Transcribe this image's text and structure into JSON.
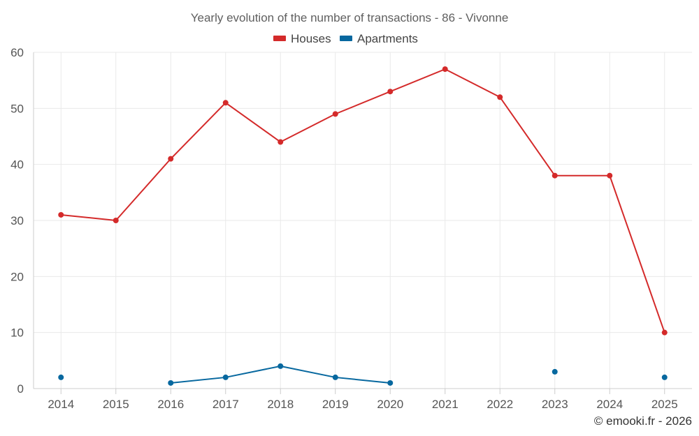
{
  "chart_data": {
    "type": "line",
    "title": "Yearly evolution of the number of transactions - 86 - Vivonne",
    "categories": [
      "2014",
      "2015",
      "2016",
      "2017",
      "2018",
      "2019",
      "2020",
      "2021",
      "2022",
      "2023",
      "2024",
      "2025"
    ],
    "series": [
      {
        "name": "Houses",
        "color": "#d42a2a",
        "values": [
          31,
          30,
          41,
          51,
          44,
          49,
          53,
          57,
          52,
          38,
          38,
          10
        ]
      },
      {
        "name": "Apartments",
        "color": "#07689f",
        "values": [
          2,
          null,
          1,
          2,
          4,
          2,
          1,
          null,
          null,
          3,
          null,
          2
        ]
      }
    ],
    "ylim": [
      0,
      60
    ],
    "yticks": [
      0,
      10,
      20,
      30,
      40,
      50,
      60
    ],
    "grid": true,
    "legend_position": "top-center",
    "xlabel": "",
    "ylabel": ""
  },
  "credit": "© emooki.fr - 2026"
}
